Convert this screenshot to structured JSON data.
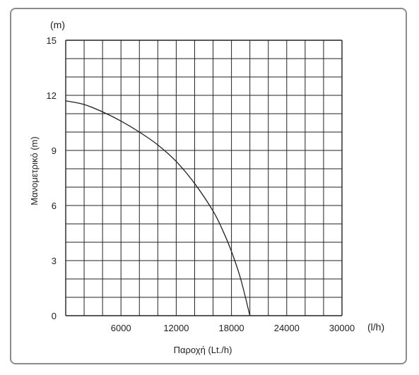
{
  "chart_data": {
    "type": "line",
    "xlabel": "Παροχή (Lt./h)",
    "ylabel": "Μανομετρικό (m)",
    "x_unit": "(l/h)",
    "y_unit": "(m)",
    "xlim": [
      0,
      30000
    ],
    "ylim": [
      0,
      15
    ],
    "x_ticks": [
      6000,
      12000,
      18000,
      24000,
      30000
    ],
    "y_ticks": [
      0,
      3,
      6,
      9,
      12,
      15
    ],
    "grid": true,
    "x_grid_step": 2000,
    "y_grid_step": 1,
    "series": [
      {
        "x": [
          0,
          2000,
          4000,
          6000,
          8000,
          10000,
          12000,
          14000,
          16000,
          17000,
          18000,
          19000,
          20000
        ],
        "y": [
          11.7,
          11.5,
          11.1,
          10.6,
          10.0,
          9.3,
          8.4,
          7.2,
          5.7,
          4.7,
          3.5,
          2.0,
          0.0
        ]
      }
    ]
  },
  "colors": {
    "frame": "#8c8c8c",
    "grid": "#222222",
    "curve": "#222222",
    "text": "#222222"
  }
}
